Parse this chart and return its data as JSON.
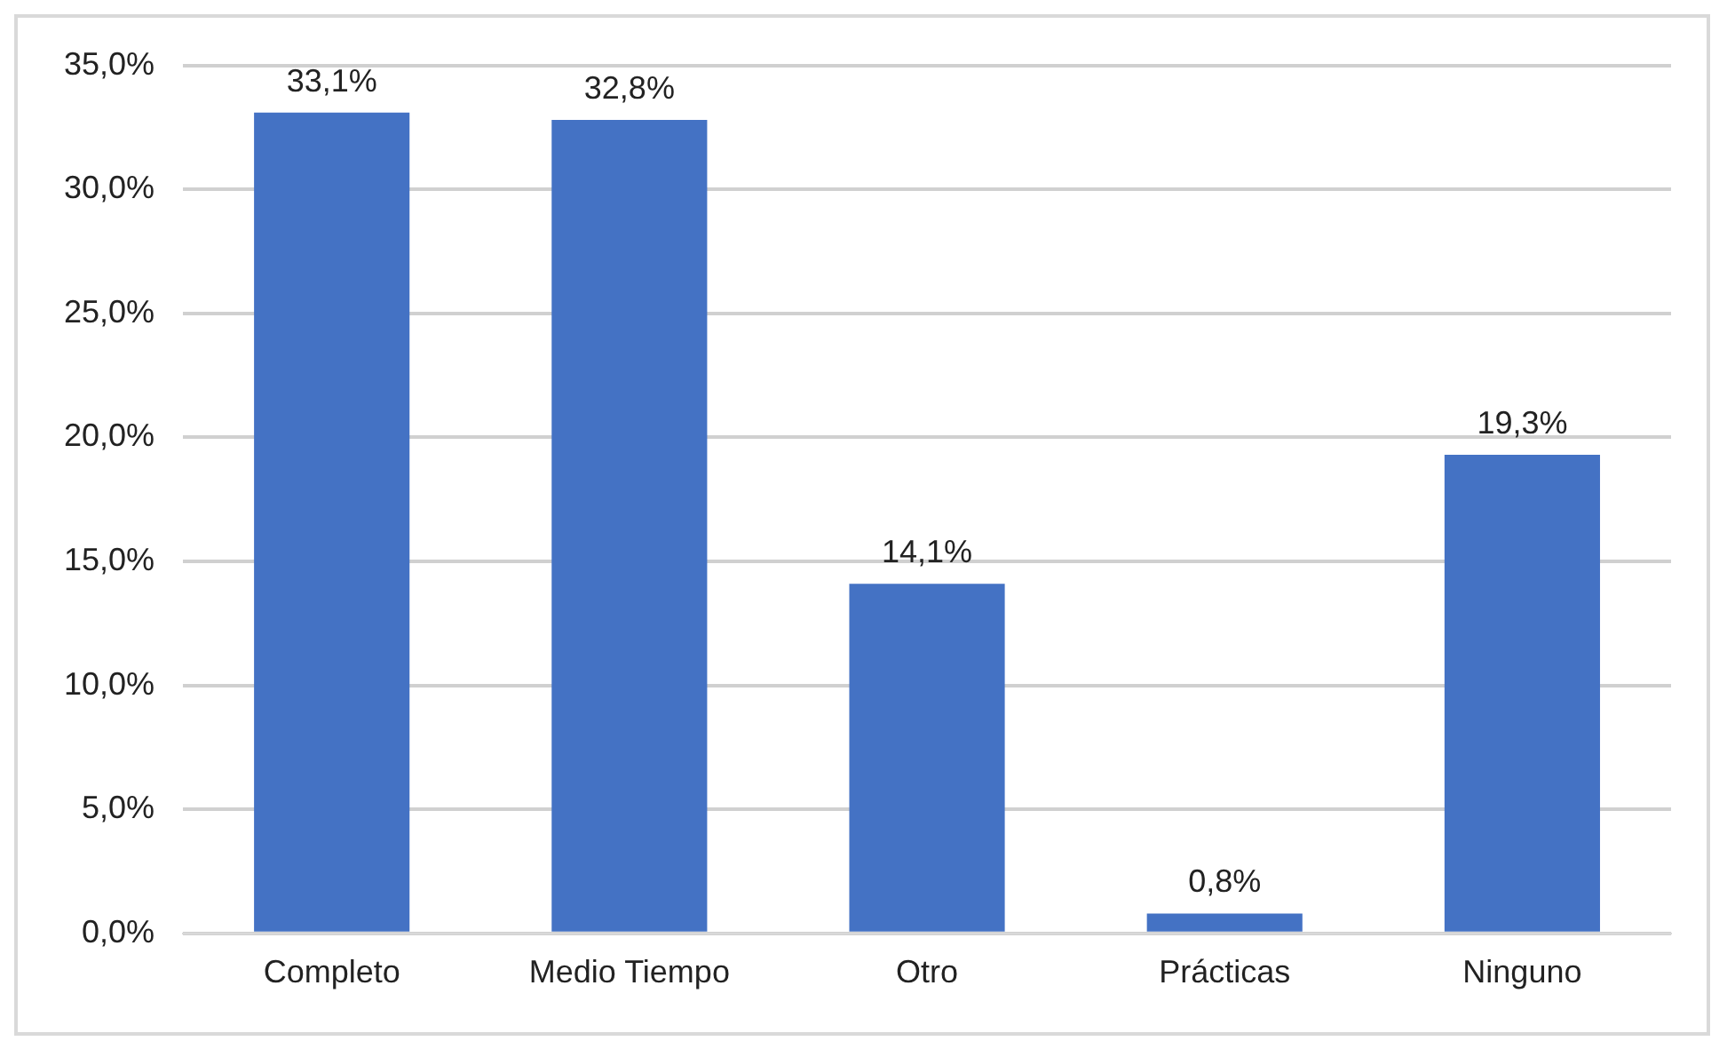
{
  "chart_data": {
    "type": "bar",
    "categories": [
      "Completo",
      "Medio Tiempo",
      "Otro",
      "Prácticas",
      "Ninguno"
    ],
    "values": [
      33.1,
      32.8,
      14.1,
      0.8,
      19.3
    ],
    "value_labels": [
      "33,1%",
      "32,8%",
      "14,1%",
      "0,8%",
      "19,3%"
    ],
    "color": "#4472c4",
    "ylim": [
      0,
      35
    ],
    "yticks": [
      {
        "value": 0,
        "label": "0,0%"
      },
      {
        "value": 5,
        "label": "5,0%"
      },
      {
        "value": 10,
        "label": "10,0%"
      },
      {
        "value": 15,
        "label": "15,0%"
      },
      {
        "value": 20,
        "label": "20,0%"
      },
      {
        "value": 25,
        "label": "25,0%"
      },
      {
        "value": 30,
        "label": "30,0%"
      },
      {
        "value": 35,
        "label": "35,0%"
      }
    ],
    "grid": "y"
  }
}
